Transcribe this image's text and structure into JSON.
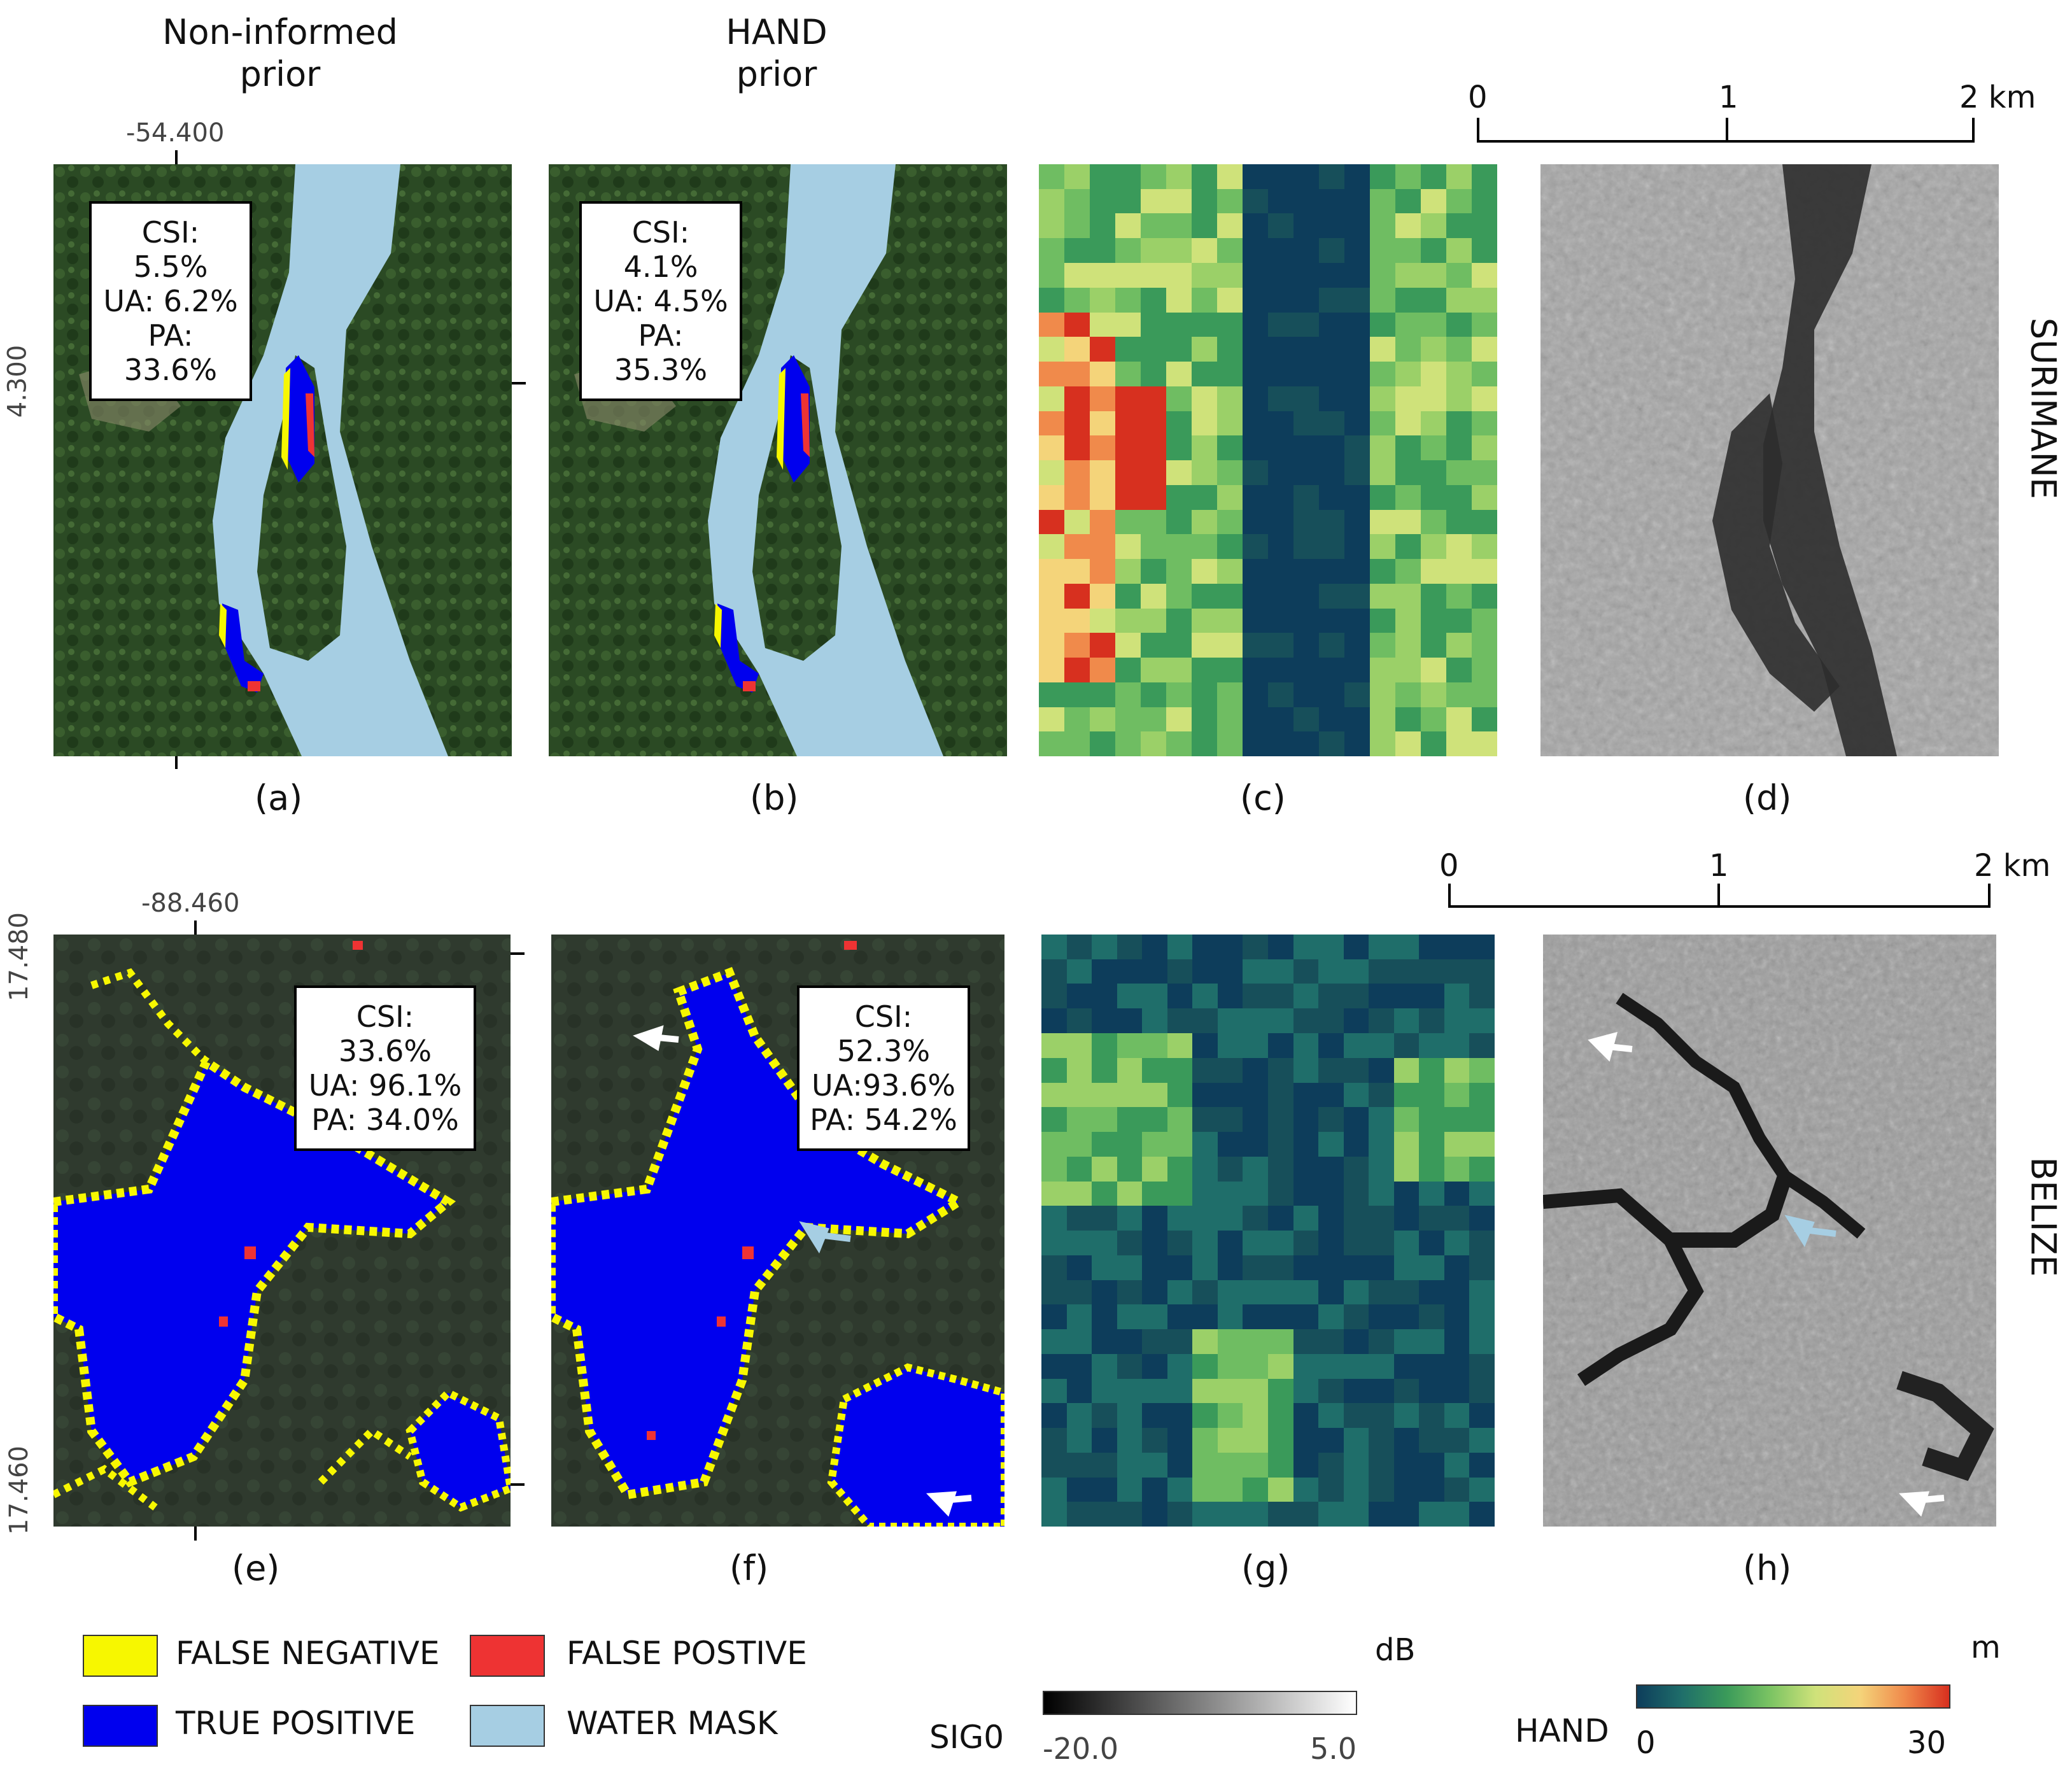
{
  "column_headers": {
    "noninformed": [
      "Non-informed",
      "prior"
    ],
    "hand": [
      "HAND",
      "prior"
    ]
  },
  "row_labels": {
    "top": "SURIMANE",
    "bottom": "BELIZE"
  },
  "coords": {
    "top_lon": "-54.400",
    "top_lat": "4.300",
    "bottom_lon": "-88.460",
    "bottom_lat_top": "17.480",
    "bottom_lat_bottom": "17.460"
  },
  "panels": {
    "a": {
      "caption": "(a)",
      "metrics": [
        "CSI: 5.5%",
        "UA: 6.2%",
        "PA: 33.6%"
      ]
    },
    "b": {
      "caption": "(b)",
      "metrics": [
        "CSI: 4.1%",
        "UA: 4.5%",
        "PA: 35.3%"
      ]
    },
    "c": {
      "caption": "(c)"
    },
    "d": {
      "caption": "(d)"
    },
    "e": {
      "caption": "(e)",
      "metrics": [
        "CSI: 33.6%",
        "UA: 96.1%",
        "PA: 34.0%"
      ]
    },
    "f": {
      "caption": "(f)",
      "metrics": [
        "CSI: 52.3%",
        "UA:93.6%",
        "PA: 54.2%"
      ]
    },
    "g": {
      "caption": "(g)"
    },
    "h": {
      "caption": "(h)"
    }
  },
  "scale_bar": {
    "labels": [
      "0",
      "1",
      "2 km"
    ]
  },
  "legend": [
    {
      "label": "FALSE NEGATIVE",
      "color": "#f7f700"
    },
    {
      "label": "FALSE POSTIVE",
      "color": "#ee3333"
    },
    {
      "label": "TRUE POSITIVE",
      "color": "#0000ee"
    },
    {
      "label": "WATER MASK",
      "color": "#a6cee3"
    }
  ],
  "colorbars": {
    "sig0": {
      "name": "SIG0",
      "unit": "dB",
      "min": "-20.0",
      "max": "5.0"
    },
    "hand": {
      "name": "HAND",
      "unit": "m",
      "min": "0",
      "max": "30"
    }
  },
  "colors": {
    "forest": "#2b4a24",
    "water_mask": "#a6cee3",
    "true_positive": "#0000ee",
    "false_negative": "#f7f700",
    "false_positive": "#ee3333"
  }
}
